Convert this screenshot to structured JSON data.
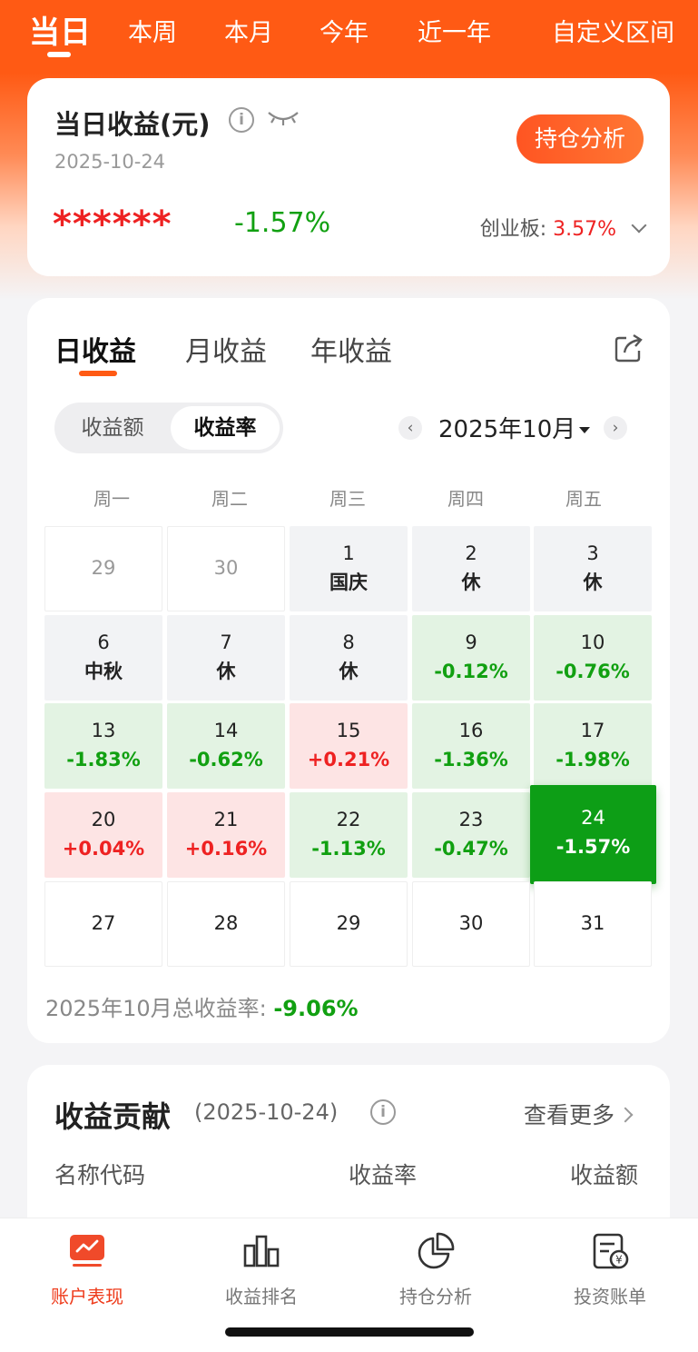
{
  "period_tabs": [
    "当日",
    "本周",
    "本月",
    "今年",
    "近一年",
    "自定义区间"
  ],
  "summary": {
    "title": "当日收益(元)",
    "date": "2025-10-24",
    "masked_amount": "******",
    "rate": "-1.57%",
    "analysis_button": "持仓分析",
    "benchmark_label": "创业板:",
    "benchmark_value": "3.57%"
  },
  "income_tabs": [
    "日收益",
    "月收益",
    "年收益"
  ],
  "segment": {
    "amount": "收益额",
    "rate": "收益率"
  },
  "month_nav": {
    "prev": "‹",
    "label": "2025年10月",
    "next": "›"
  },
  "weekdays": [
    "周一",
    "周二",
    "周三",
    "周四",
    "周五"
  ],
  "calendar": [
    [
      {
        "d": "29",
        "s": ""
      },
      {
        "d": "30",
        "s": ""
      },
      {
        "d": "1",
        "s": "国庆"
      },
      {
        "d": "2",
        "s": "休"
      },
      {
        "d": "3",
        "s": "休"
      }
    ],
    [
      {
        "d": "6",
        "s": "中秋"
      },
      {
        "d": "7",
        "s": "休"
      },
      {
        "d": "8",
        "s": "休"
      },
      {
        "d": "9",
        "s": "-0.12%"
      },
      {
        "d": "10",
        "s": "-0.76%"
      }
    ],
    [
      {
        "d": "13",
        "s": "-1.83%"
      },
      {
        "d": "14",
        "s": "-0.62%"
      },
      {
        "d": "15",
        "s": "+0.21%"
      },
      {
        "d": "16",
        "s": "-1.36%"
      },
      {
        "d": "17",
        "s": "-1.98%"
      }
    ],
    [
      {
        "d": "20",
        "s": "+0.04%"
      },
      {
        "d": "21",
        "s": "+0.16%"
      },
      {
        "d": "22",
        "s": "-1.13%"
      },
      {
        "d": "23",
        "s": "-0.47%"
      },
      {
        "d": "24",
        "s": "-1.57%"
      }
    ],
    [
      {
        "d": "27",
        "s": ""
      },
      {
        "d": "28",
        "s": ""
      },
      {
        "d": "29",
        "s": ""
      },
      {
        "d": "30",
        "s": ""
      },
      {
        "d": "31",
        "s": ""
      }
    ]
  ],
  "month_total": {
    "label": "2025年10月总收益率:",
    "value": "-9.06%"
  },
  "contribution": {
    "title": "收益贡献",
    "date": "(2025-10-24)",
    "more": "查看更多",
    "headers": [
      "名称代码",
      "收益率",
      "收益额"
    ]
  },
  "bottom_nav": [
    "账户表现",
    "收益排名",
    "持仓分析",
    "投资账单"
  ],
  "colors": {
    "brand": "#ff5a14",
    "gain": "#ee2222",
    "loss": "#11a011",
    "selected": "#0d9e16"
  }
}
